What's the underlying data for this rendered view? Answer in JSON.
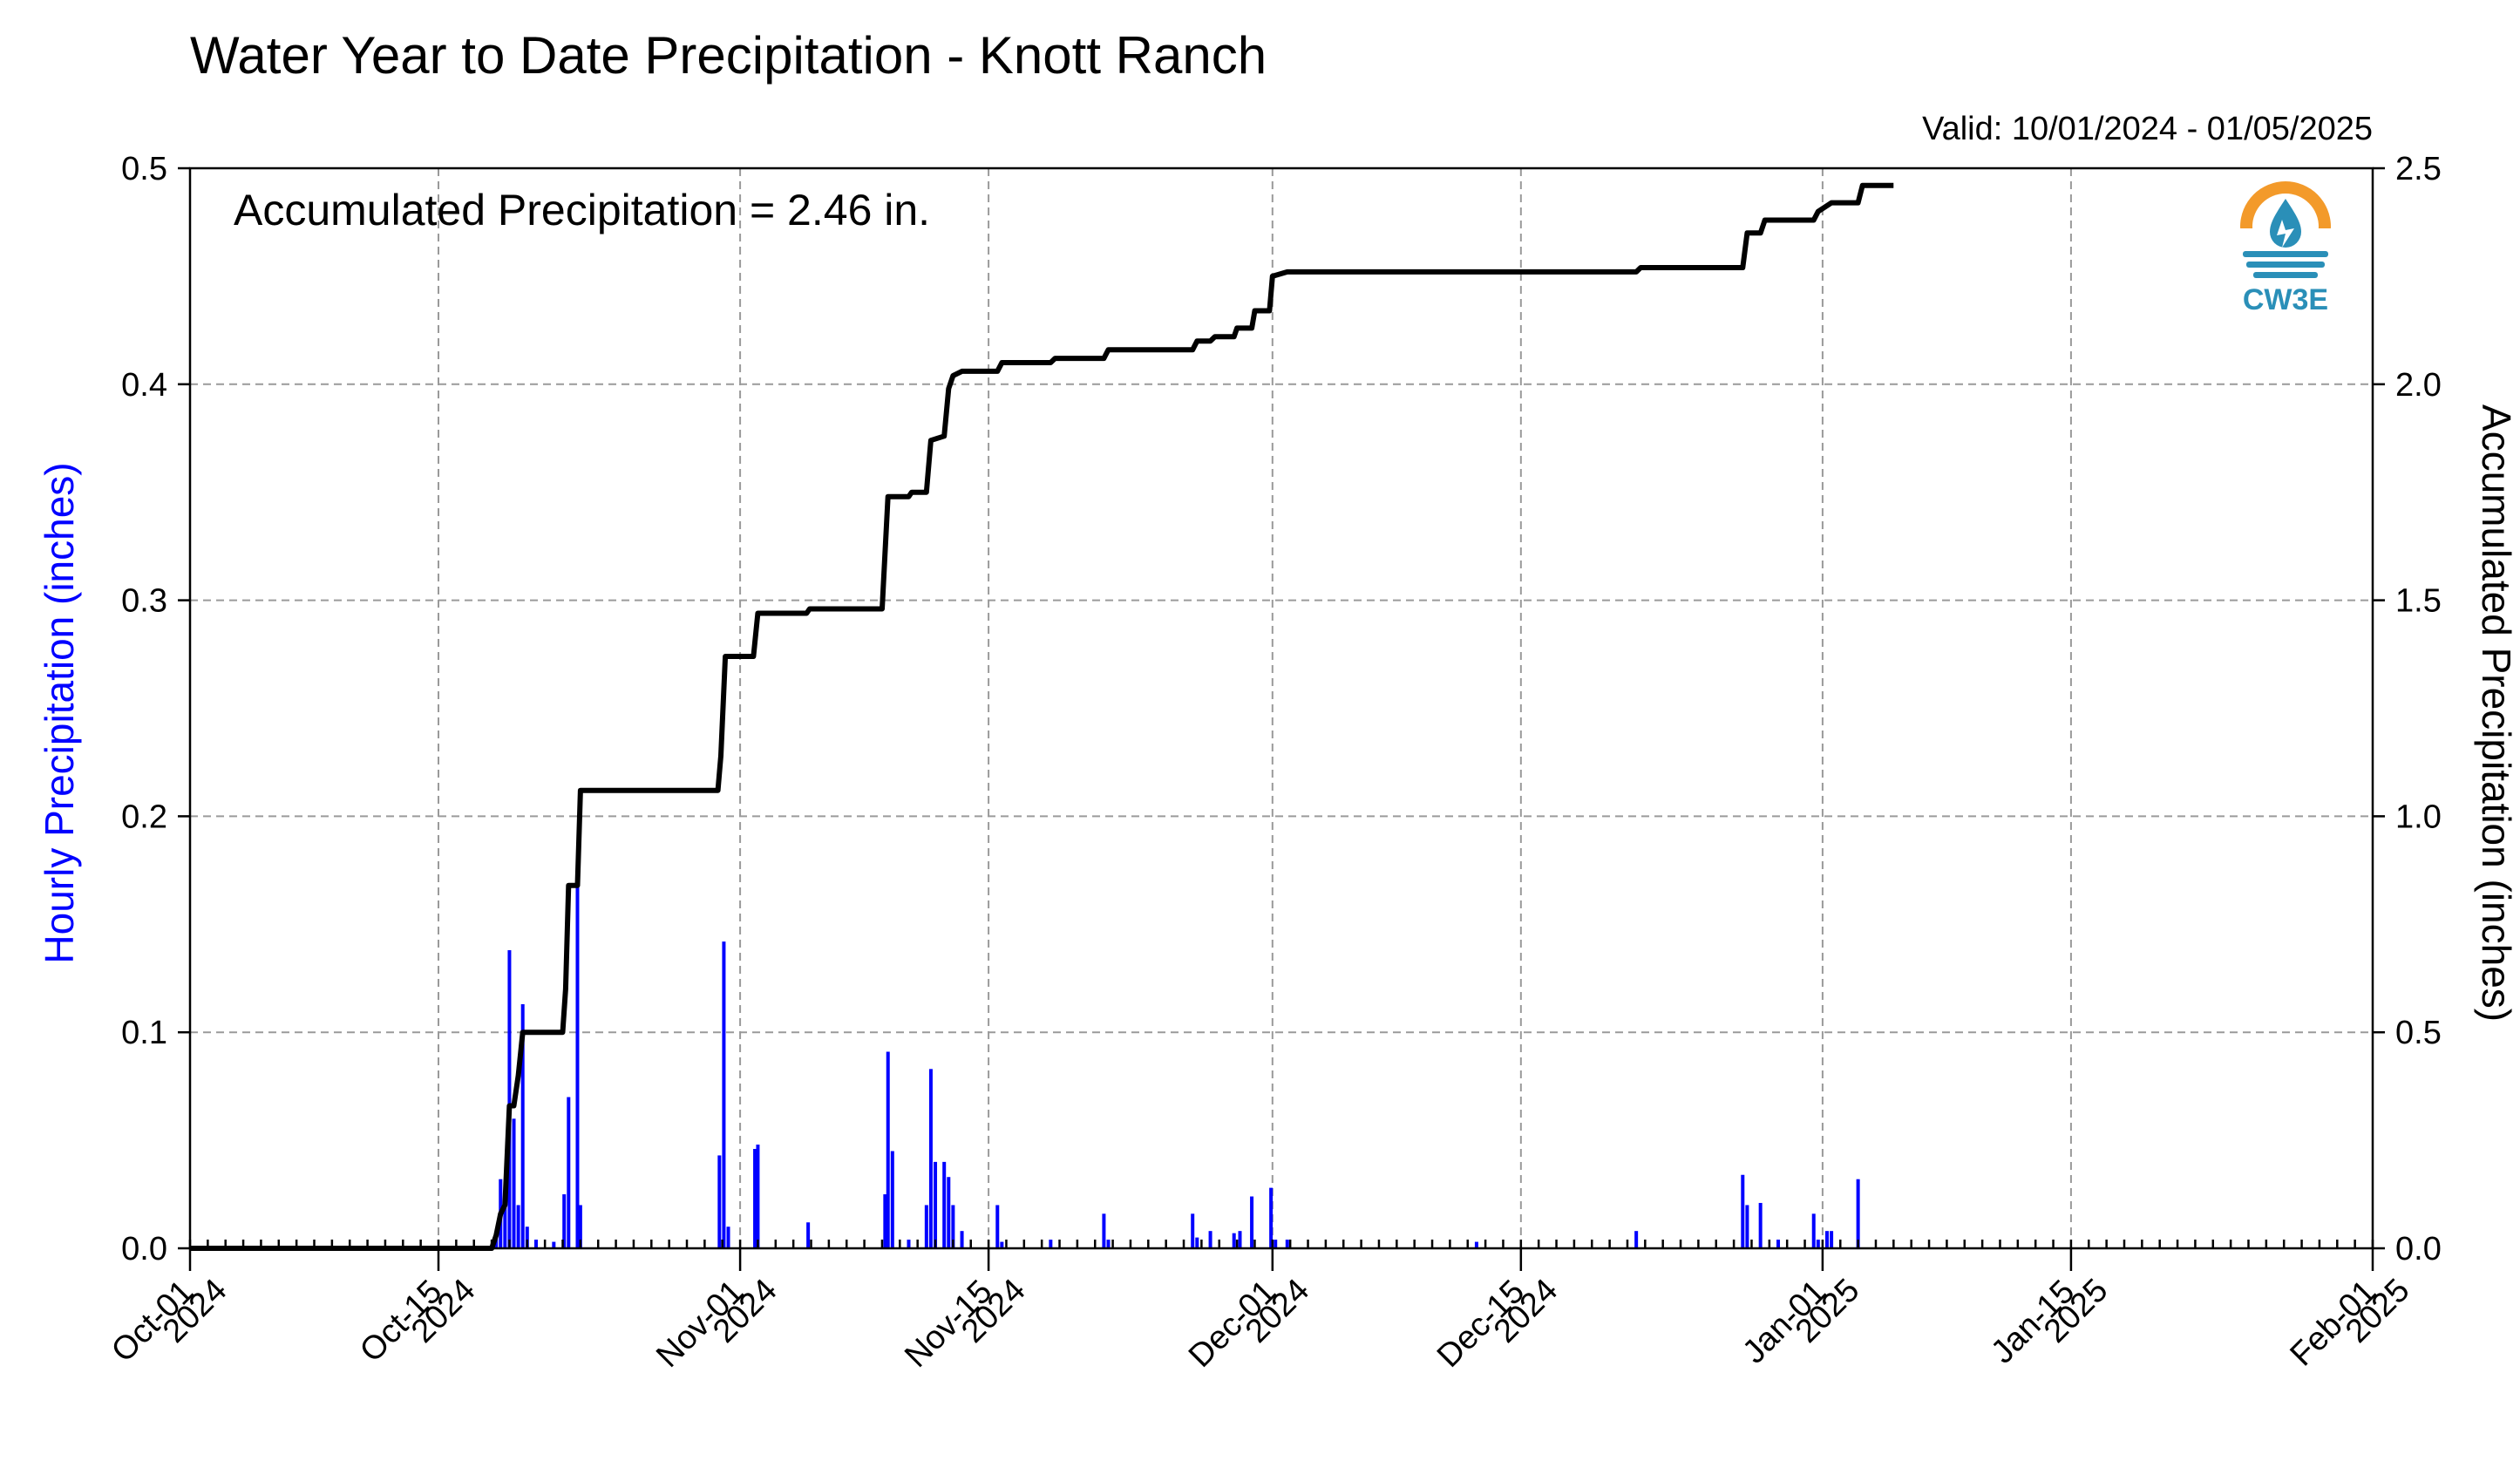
{
  "title": "Water Year to Date Precipitation - Knott Ranch",
  "valid_text": "Valid: 10/01/2024 - 01/05/2025",
  "accum_text": "Accumulated Precipitation = 2.46 in.",
  "logo": {
    "text": "CW3E",
    "colors": {
      "orange": "#f39a2a",
      "blue": "#2a8fb8"
    }
  },
  "colors": {
    "bars": "#0000ff",
    "line": "#000000",
    "left_axis_label": "#0000ff"
  },
  "chart_data": {
    "type": "bar+line",
    "title": "Water Year to Date Precipitation - Knott Ranch",
    "x_axis": {
      "type": "date",
      "range": [
        "2024-10-01",
        "2025-02-01"
      ],
      "ticks": [
        {
          "date": "2024-10-01",
          "line1": "Oct-01",
          "line2": "2024"
        },
        {
          "date": "2024-10-15",
          "line1": "Oct-15",
          "line2": "2024"
        },
        {
          "date": "2024-11-01",
          "line1": "Nov-01",
          "line2": "2024"
        },
        {
          "date": "2024-11-15",
          "line1": "Nov-15",
          "line2": "2024"
        },
        {
          "date": "2024-12-01",
          "line1": "Dec-01",
          "line2": "2024"
        },
        {
          "date": "2024-12-15",
          "line1": "Dec-15",
          "line2": "2024"
        },
        {
          "date": "2025-01-01",
          "line1": "Jan-01",
          "line2": "2025"
        },
        {
          "date": "2025-01-15",
          "line1": "Jan-15",
          "line2": "2025"
        },
        {
          "date": "2025-02-01",
          "line1": "Feb-01",
          "line2": "2025"
        }
      ]
    },
    "y_left": {
      "label": "Hourly Precipitation (inches)",
      "range": [
        0,
        0.5
      ],
      "ticks": [
        "0.0",
        "0.1",
        "0.2",
        "0.3",
        "0.4",
        "0.5"
      ]
    },
    "y_right": {
      "label": "Accumulated Precipitation (inches)",
      "range": [
        0,
        2.5
      ],
      "ticks": [
        "0.0",
        "0.5",
        "1.0",
        "1.5",
        "2.0",
        "2.5"
      ]
    },
    "grid": true,
    "series": [
      {
        "type": "bar",
        "axis": "left",
        "points": [
          [
            "2024-10-18 06:00",
            0.005
          ],
          [
            "2024-10-18 12:00",
            0.032
          ],
          [
            "2024-10-18 18:00",
            0.02
          ],
          [
            "2024-10-19 00:00",
            0.138
          ],
          [
            "2024-10-19 06:00",
            0.06
          ],
          [
            "2024-10-19 12:00",
            0.02
          ],
          [
            "2024-10-19 18:00",
            0.113
          ],
          [
            "2024-10-20 00:00",
            0.01
          ],
          [
            "2024-10-20 12:00",
            0.004
          ],
          [
            "2024-10-21 12:00",
            0.003
          ],
          [
            "2024-10-22 02:00",
            0.025
          ],
          [
            "2024-10-22 08:00",
            0.07
          ],
          [
            "2024-10-22 20:00",
            0.168
          ],
          [
            "2024-10-23 00:00",
            0.02
          ],
          [
            "2024-10-30 20:00",
            0.043
          ],
          [
            "2024-10-31 02:00",
            0.142
          ],
          [
            "2024-10-31 08:00",
            0.01
          ],
          [
            "2024-11-01 20:00",
            0.046
          ],
          [
            "2024-11-02 00:00",
            0.048
          ],
          [
            "2024-11-04 20:00",
            0.012
          ],
          [
            "2024-11-09 04:00",
            0.025
          ],
          [
            "2024-11-09 08:00",
            0.091
          ],
          [
            "2024-11-09 14:00",
            0.045
          ],
          [
            "2024-11-10 12:00",
            0.004
          ],
          [
            "2024-11-11 12:00",
            0.02
          ],
          [
            "2024-11-11 18:00",
            0.083
          ],
          [
            "2024-11-12 00:00",
            0.04
          ],
          [
            "2024-11-12 12:00",
            0.04
          ],
          [
            "2024-11-12 18:00",
            0.033
          ],
          [
            "2024-11-13 00:00",
            0.02
          ],
          [
            "2024-11-13 12:00",
            0.008
          ],
          [
            "2024-11-15 12:00",
            0.02
          ],
          [
            "2024-11-15 18:00",
            0.003
          ],
          [
            "2024-11-18 12:00",
            0.004
          ],
          [
            "2024-11-21 12:00",
            0.016
          ],
          [
            "2024-11-21 18:00",
            0.004
          ],
          [
            "2024-11-26 12:00",
            0.016
          ],
          [
            "2024-11-26 18:00",
            0.005
          ],
          [
            "2024-11-27 12:00",
            0.008
          ],
          [
            "2024-11-28 20:00",
            0.007
          ],
          [
            "2024-11-29 04:00",
            0.008
          ],
          [
            "2024-11-29 20:00",
            0.024
          ],
          [
            "2024-11-30 22:00",
            0.028
          ],
          [
            "2024-12-01 04:00",
            0.004
          ],
          [
            "2024-12-01 20:00",
            0.004
          ],
          [
            "2024-12-12 12:00",
            0.003
          ],
          [
            "2024-12-21 12:00",
            0.008
          ],
          [
            "2024-12-27 12:00",
            0.034
          ],
          [
            "2024-12-27 18:00",
            0.02
          ],
          [
            "2024-12-28 12:00",
            0.021
          ],
          [
            "2024-12-29 12:00",
            0.004
          ],
          [
            "2024-12-31 12:00",
            0.016
          ],
          [
            "2024-12-31 18:00",
            0.004
          ],
          [
            "2025-01-01 06:00",
            0.008
          ],
          [
            "2025-01-01 12:00",
            0.008
          ],
          [
            "2025-01-03 00:00",
            0.032
          ]
        ]
      },
      {
        "type": "line",
        "axis": "right",
        "points": [
          [
            "2024-10-01 00:00",
            0.0
          ],
          [
            "2024-10-18 00:00",
            0.0
          ],
          [
            "2024-10-18 06:00",
            0.03
          ],
          [
            "2024-10-18 12:00",
            0.08
          ],
          [
            "2024-10-18 18:00",
            0.1
          ],
          [
            "2024-10-19 00:00",
            0.33
          ],
          [
            "2024-10-19 06:00",
            0.33
          ],
          [
            "2024-10-19 12:00",
            0.4
          ],
          [
            "2024-10-19 18:00",
            0.5
          ],
          [
            "2024-10-22 00:00",
            0.5
          ],
          [
            "2024-10-22 04:00",
            0.6
          ],
          [
            "2024-10-22 08:00",
            0.84
          ],
          [
            "2024-10-22 20:00",
            0.84
          ],
          [
            "2024-10-23 00:00",
            1.06
          ],
          [
            "2024-10-30 18:00",
            1.06
          ],
          [
            "2024-10-30 22:00",
            1.14
          ],
          [
            "2024-10-31 04:00",
            1.37
          ],
          [
            "2024-11-01 18:00",
            1.37
          ],
          [
            "2024-11-02 00:00",
            1.47
          ],
          [
            "2024-11-04 18:00",
            1.47
          ],
          [
            "2024-11-04 22:00",
            1.48
          ],
          [
            "2024-11-09 00:00",
            1.48
          ],
          [
            "2024-11-09 08:00",
            1.74
          ],
          [
            "2024-11-10 12:00",
            1.74
          ],
          [
            "2024-11-10 16:00",
            1.75
          ],
          [
            "2024-11-11 12:00",
            1.75
          ],
          [
            "2024-11-11 18:00",
            1.87
          ],
          [
            "2024-11-12 12:00",
            1.88
          ],
          [
            "2024-11-12 18:00",
            1.99
          ],
          [
            "2024-11-13 00:00",
            2.02
          ],
          [
            "2024-11-13 12:00",
            2.03
          ],
          [
            "2024-11-15 12:00",
            2.03
          ],
          [
            "2024-11-15 18:00",
            2.05
          ],
          [
            "2024-11-18 12:00",
            2.05
          ],
          [
            "2024-11-18 18:00",
            2.06
          ],
          [
            "2024-11-21 12:00",
            2.06
          ],
          [
            "2024-11-21 18:00",
            2.08
          ],
          [
            "2024-11-26 12:00",
            2.08
          ],
          [
            "2024-11-26 18:00",
            2.1
          ],
          [
            "2024-11-27 12:00",
            2.1
          ],
          [
            "2024-11-27 18:00",
            2.11
          ],
          [
            "2024-11-28 20:00",
            2.11
          ],
          [
            "2024-11-29 00:00",
            2.13
          ],
          [
            "2024-11-29 20:00",
            2.13
          ],
          [
            "2024-11-30 00:00",
            2.17
          ],
          [
            "2024-11-30 20:00",
            2.17
          ],
          [
            "2024-12-01 00:00",
            2.25
          ],
          [
            "2024-12-01 20:00",
            2.26
          ],
          [
            "2024-12-12 12:00",
            2.26
          ],
          [
            "2024-12-12 18:00",
            2.26
          ],
          [
            "2024-12-21 12:00",
            2.26
          ],
          [
            "2024-12-21 18:00",
            2.27
          ],
          [
            "2024-12-27 12:00",
            2.27
          ],
          [
            "2024-12-27 18:00",
            2.35
          ],
          [
            "2024-12-28 12:00",
            2.35
          ],
          [
            "2024-12-28 18:00",
            2.38
          ],
          [
            "2024-12-31 12:00",
            2.38
          ],
          [
            "2024-12-31 18:00",
            2.4
          ],
          [
            "2025-01-01 12:00",
            2.42
          ],
          [
            "2025-01-03 00:00",
            2.42
          ],
          [
            "2025-01-03 06:00",
            2.46
          ],
          [
            "2025-01-05 00:00",
            2.46
          ]
        ]
      }
    ]
  }
}
